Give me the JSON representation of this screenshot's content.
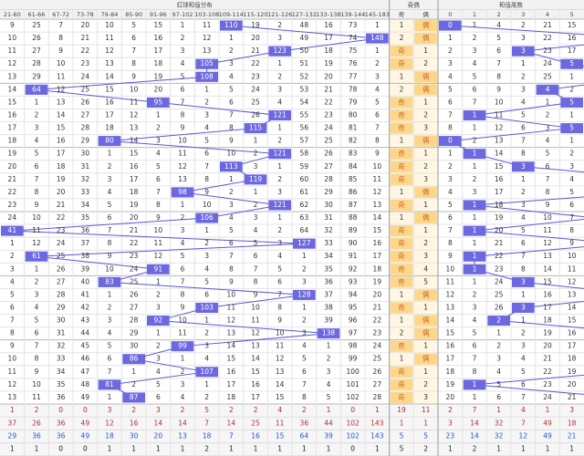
{
  "header": {
    "groups": [
      "红球和值分布",
      "奇偶",
      "和值尾数"
    ],
    "sum_columns": [
      "21-60",
      "61-66",
      "67-72",
      "73-78",
      "79-84",
      "85-90",
      "91-96",
      "97-102",
      "103-108",
      "109-114",
      "115-120",
      "121-126",
      "127-132",
      "133-138",
      "139-144",
      "145-183"
    ],
    "parity_columns": [
      "奇",
      "偶"
    ],
    "tail_columns": [
      0,
      1,
      2,
      3,
      4,
      5
    ]
  },
  "rows": [
    {
      "sum": [
        9,
        25,
        7,
        20,
        10,
        5,
        15,
        1,
        11,
        110,
        19,
        2,
        48,
        16,
        73,
        1
      ],
      "hit": 9,
      "parity": [
        1,
        "偶"
      ],
      "tail": [
        0,
        1,
        4,
        2,
        21,
        15
      ]
    },
    {
      "sum": [
        10,
        26,
        8,
        21,
        11,
        6,
        16,
        2,
        12,
        1,
        20,
        3,
        49,
        17,
        74,
        148
      ],
      "hit": 15,
      "parity": [
        2,
        "偶"
      ],
      "tail": [
        1,
        2,
        5,
        3,
        22,
        16
      ]
    },
    {
      "sum": [
        11,
        27,
        9,
        22,
        12,
        7,
        17,
        3,
        13,
        2,
        21,
        123,
        50,
        18,
        75,
        1
      ],
      "hit": 11,
      "parity": [
        "奇",
        1
      ],
      "tail": [
        2,
        3,
        6,
        3,
        23,
        17
      ]
    },
    {
      "sum": [
        12,
        28,
        10,
        23,
        13,
        8,
        18,
        4,
        105,
        3,
        22,
        1,
        51,
        19,
        76,
        2
      ],
      "hit": 8,
      "parity": [
        "奇",
        2
      ],
      "tail": [
        3,
        4,
        7,
        1,
        24,
        5
      ]
    },
    {
      "sum": [
        13,
        29,
        11,
        24,
        14,
        9,
        19,
        5,
        108,
        4,
        23,
        2,
        52,
        20,
        77,
        3
      ],
      "hit": 8,
      "parity": [
        1,
        "偶"
      ],
      "tail": [
        4,
        5,
        8,
        2,
        25,
        1
      ]
    },
    {
      "sum": [
        14,
        64,
        12,
        25,
        15,
        10,
        20,
        6,
        1,
        5,
        24,
        3,
        53,
        21,
        78,
        4
      ],
      "hit": 1,
      "parity": [
        2,
        "偶"
      ],
      "tail": [
        5,
        6,
        9,
        3,
        4,
        2
      ]
    },
    {
      "sum": [
        15,
        1,
        13,
        26,
        16,
        11,
        95,
        7,
        2,
        6,
        25,
        4,
        54,
        22,
        79,
        5
      ],
      "hit": 6,
      "parity": [
        "奇",
        1
      ],
      "tail": [
        6,
        7,
        10,
        4,
        1,
        5
      ]
    },
    {
      "sum": [
        16,
        2,
        14,
        27,
        17,
        12,
        1,
        8,
        3,
        7,
        26,
        121,
        55,
        23,
        80,
        6
      ],
      "hit": 11,
      "parity": [
        "奇",
        2
      ],
      "tail": [
        7,
        1,
        11,
        5,
        2,
        1
      ]
    },
    {
      "sum": [
        17,
        3,
        15,
        28,
        18,
        13,
        2,
        9,
        4,
        8,
        115,
        1,
        56,
        24,
        81,
        7
      ],
      "hit": 10,
      "parity": [
        "奇",
        3
      ],
      "tail": [
        8,
        1,
        12,
        6,
        3,
        5
      ]
    },
    {
      "sum": [
        18,
        4,
        16,
        29,
        80,
        14,
        3,
        10,
        5,
        9,
        1,
        2,
        57,
        25,
        82,
        8
      ],
      "hit": 4,
      "parity": [
        1,
        "偶"
      ],
      "tail": [
        0,
        2,
        13,
        7,
        4,
        1
      ]
    },
    {
      "sum": [
        19,
        5,
        17,
        30,
        1,
        15,
        4,
        11,
        6,
        10,
        2,
        121,
        58,
        26,
        83,
        9
      ],
      "hit": 11,
      "parity": [
        "奇",
        1
      ],
      "tail": [
        1,
        1,
        14,
        8,
        5,
        2
      ]
    },
    {
      "sum": [
        20,
        6,
        18,
        31,
        2,
        16,
        5,
        12,
        7,
        113,
        3,
        1,
        59,
        27,
        84,
        10
      ],
      "hit": 9,
      "parity": [
        "奇",
        2
      ],
      "tail": [
        2,
        1,
        15,
        3,
        6,
        3
      ]
    },
    {
      "sum": [
        21,
        7,
        19,
        32,
        3,
        17,
        6,
        13,
        8,
        1,
        119,
        2,
        60,
        28,
        85,
        11
      ],
      "hit": 10,
      "parity": [
        "奇",
        3
      ],
      "tail": [
        3,
        2,
        16,
        1,
        7,
        4
      ]
    },
    {
      "sum": [
        22,
        8,
        20,
        33,
        4,
        18,
        7,
        98,
        9,
        2,
        1,
        3,
        61,
        29,
        86,
        12
      ],
      "hit": 7,
      "parity": [
        1,
        "偶"
      ],
      "tail": [
        4,
        3,
        17,
        2,
        8,
        5
      ]
    },
    {
      "sum": [
        23,
        9,
        21,
        34,
        5,
        19,
        8,
        1,
        10,
        3,
        2,
        121,
        62,
        30,
        87,
        13
      ],
      "hit": 11,
      "parity": [
        "奇",
        1
      ],
      "tail": [
        5,
        1,
        18,
        3,
        9,
        6
      ]
    },
    {
      "sum": [
        24,
        10,
        22,
        35,
        6,
        20,
        9,
        2,
        106,
        4,
        3,
        1,
        63,
        31,
        88,
        14
      ],
      "hit": 8,
      "parity": [
        1,
        "偶"
      ],
      "tail": [
        6,
        1,
        19,
        4,
        10,
        7
      ]
    },
    {
      "sum": [
        41,
        11,
        23,
        36,
        7,
        21,
        10,
        3,
        1,
        5,
        4,
        2,
        64,
        32,
        89,
        15
      ],
      "hit": 0,
      "parity": [
        "奇",
        1
      ],
      "tail": [
        7,
        1,
        20,
        5,
        11,
        8
      ]
    },
    {
      "sum": [
        1,
        12,
        24,
        37,
        8,
        22,
        11,
        4,
        2,
        6,
        5,
        3,
        127,
        33,
        90,
        16
      ],
      "hit": 12,
      "parity": [
        "奇",
        2
      ],
      "tail": [
        8,
        1,
        21,
        6,
        12,
        9
      ]
    },
    {
      "sum": [
        2,
        61,
        25,
        38,
        9,
        23,
        12,
        5,
        3,
        7,
        6,
        4,
        1,
        34,
        91,
        17
      ],
      "hit": 1,
      "parity": [
        "奇",
        3
      ],
      "tail": [
        9,
        1,
        22,
        7,
        13,
        10
      ]
    },
    {
      "sum": [
        3,
        1,
        26,
        39,
        10,
        24,
        91,
        6,
        4,
        8,
        7,
        5,
        2,
        35,
        92,
        18
      ],
      "hit": 6,
      "parity": [
        "奇",
        4
      ],
      "tail": [
        10,
        1,
        23,
        8,
        14,
        11
      ]
    },
    {
      "sum": [
        4,
        2,
        27,
        40,
        83,
        25,
        1,
        7,
        5,
        9,
        8,
        6,
        3,
        36,
        93,
        19
      ],
      "hit": 4,
      "parity": [
        "奇",
        5
      ],
      "tail": [
        11,
        1,
        24,
        3,
        15,
        12
      ]
    },
    {
      "sum": [
        5,
        3,
        28,
        41,
        1,
        26,
        2,
        8,
        6,
        10,
        9,
        7,
        128,
        37,
        94,
        20
      ],
      "hit": 12,
      "parity": [
        1,
        "偶"
      ],
      "tail": [
        12,
        2,
        25,
        1,
        16,
        13
      ]
    },
    {
      "sum": [
        6,
        4,
        29,
        42,
        2,
        27,
        3,
        9,
        103,
        11,
        10,
        8,
        1,
        38,
        95,
        21
      ],
      "hit": 8,
      "parity": [
        "奇",
        1
      ],
      "tail": [
        13,
        3,
        26,
        3,
        17,
        14
      ]
    },
    {
      "sum": [
        7,
        5,
        30,
        43,
        3,
        28,
        92,
        10,
        1,
        12,
        11,
        9,
        2,
        39,
        96,
        22
      ],
      "hit": 6,
      "parity": [
        1,
        "偶"
      ],
      "tail": [
        14,
        4,
        2,
        1,
        18,
        15
      ]
    },
    {
      "sum": [
        8,
        6,
        31,
        44,
        4,
        29,
        1,
        11,
        2,
        13,
        12,
        10,
        3,
        138,
        97,
        23
      ],
      "hit": 13,
      "parity": [
        2,
        "偶"
      ],
      "tail": [
        15,
        5,
        1,
        2,
        19,
        16
      ]
    },
    {
      "sum": [
        9,
        7,
        32,
        45,
        5,
        30,
        2,
        99,
        3,
        14,
        13,
        11,
        4,
        1,
        98,
        24
      ],
      "hit": 7,
      "parity": [
        "奇",
        1
      ],
      "tail": [
        16,
        6,
        2,
        3,
        20,
        17
      ]
    },
    {
      "sum": [
        10,
        8,
        33,
        46,
        6,
        86,
        3,
        1,
        4,
        15,
        14,
        12,
        5,
        2,
        99,
        25
      ],
      "hit": 5,
      "parity": [
        1,
        "偶"
      ],
      "tail": [
        17,
        7,
        3,
        4,
        21,
        18
      ]
    },
    {
      "sum": [
        11,
        9,
        34,
        47,
        7,
        1,
        4,
        2,
        107,
        16,
        15,
        13,
        6,
        3,
        100,
        26
      ],
      "hit": 8,
      "parity": [
        "奇",
        1
      ],
      "tail": [
        18,
        8,
        4,
        5,
        22,
        19
      ]
    },
    {
      "sum": [
        12,
        10,
        35,
        48,
        81,
        2,
        5,
        3,
        1,
        17,
        16,
        14,
        7,
        4,
        101,
        27
      ],
      "hit": 4,
      "parity": [
        "奇",
        2
      ],
      "tail": [
        19,
        1,
        5,
        6,
        23,
        20
      ]
    },
    {
      "sum": [
        13,
        11,
        36,
        49,
        1,
        87,
        6,
        4,
        2,
        18,
        17,
        15,
        8,
        5,
        102,
        28
      ],
      "hit": 5,
      "parity": [
        "奇",
        3
      ],
      "tail": [
        20,
        1,
        6,
        7,
        24,
        21
      ]
    }
  ],
  "footer": [
    {
      "color": "#cc2222",
      "sum": [
        1,
        2,
        0,
        0,
        3,
        2,
        3,
        2,
        5,
        2,
        2,
        4,
        2,
        1,
        0,
        1
      ],
      "parity": [
        19,
        11
      ],
      "tail": [
        2,
        7,
        1,
        4,
        1,
        3
      ]
    },
    {
      "color": "#b03030",
      "sum": [
        37,
        26,
        36,
        49,
        12,
        16,
        14,
        14,
        7,
        14,
        25,
        11,
        36,
        44,
        102,
        143
      ],
      "parity": [
        1,
        1
      ],
      "tail": [
        3,
        14,
        32,
        7,
        49,
        18
      ]
    },
    {
      "color": "#2255cc",
      "sum": [
        29,
        36,
        36,
        49,
        18,
        30,
        20,
        13,
        18,
        7,
        16,
        15,
        64,
        39,
        102,
        143
      ],
      "parity": [
        5,
        5
      ],
      "tail": [
        23,
        14,
        32,
        12,
        49,
        21
      ]
    },
    {
      "color": "#222222",
      "sum": [
        1,
        1,
        0,
        0,
        1,
        1,
        1,
        1,
        2,
        1,
        1,
        1,
        1,
        1,
        0,
        1
      ],
      "parity": [
        5,
        2
      ],
      "tail": [
        1,
        2,
        1,
        1,
        1,
        1
      ]
    }
  ]
}
